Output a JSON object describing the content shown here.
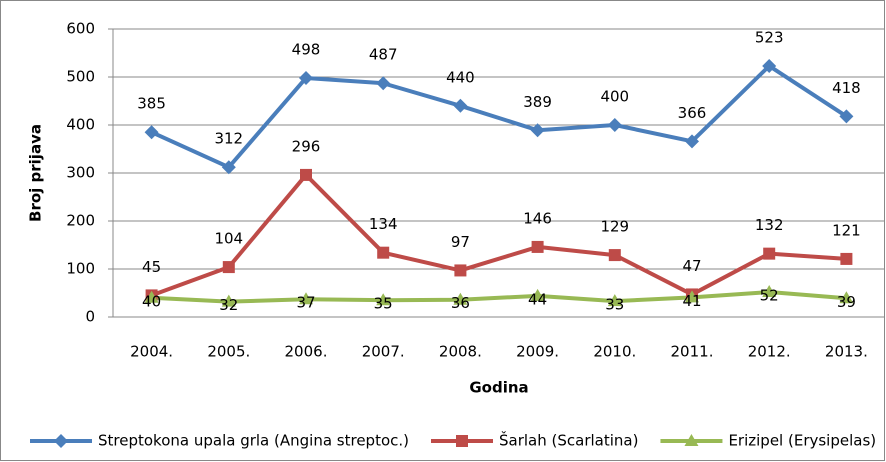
{
  "chart_data": {
    "type": "line",
    "categories": [
      "2004.",
      "2005.",
      "2006.",
      "2007.",
      "2008.",
      "2009.",
      "2010.",
      "2011.",
      "2012.",
      "2013."
    ],
    "series": [
      {
        "name": "Streptokona upala grla (Angina streptoc.)",
        "color": "#4a7ebb",
        "marker": "diamond",
        "values": [
          385,
          312,
          498,
          487,
          440,
          389,
          400,
          366,
          523,
          418
        ]
      },
      {
        "name": "Šarlah (Scarlatina)",
        "color": "#be4b48",
        "marker": "square",
        "values": [
          45,
          104,
          296,
          134,
          97,
          146,
          129,
          47,
          132,
          121
        ]
      },
      {
        "name": "Erizipel (Erysipelas)",
        "color": "#98b954",
        "marker": "triangle",
        "values": [
          40,
          32,
          37,
          35,
          36,
          44,
          33,
          41,
          52,
          39
        ]
      }
    ],
    "ylabel": "Broj prijava",
    "xlabel": "Godina",
    "ylim": [
      0,
      600
    ],
    "yticks": [
      0,
      100,
      200,
      300,
      400,
      500,
      600
    ],
    "grid": true,
    "legend": "bottom"
  }
}
